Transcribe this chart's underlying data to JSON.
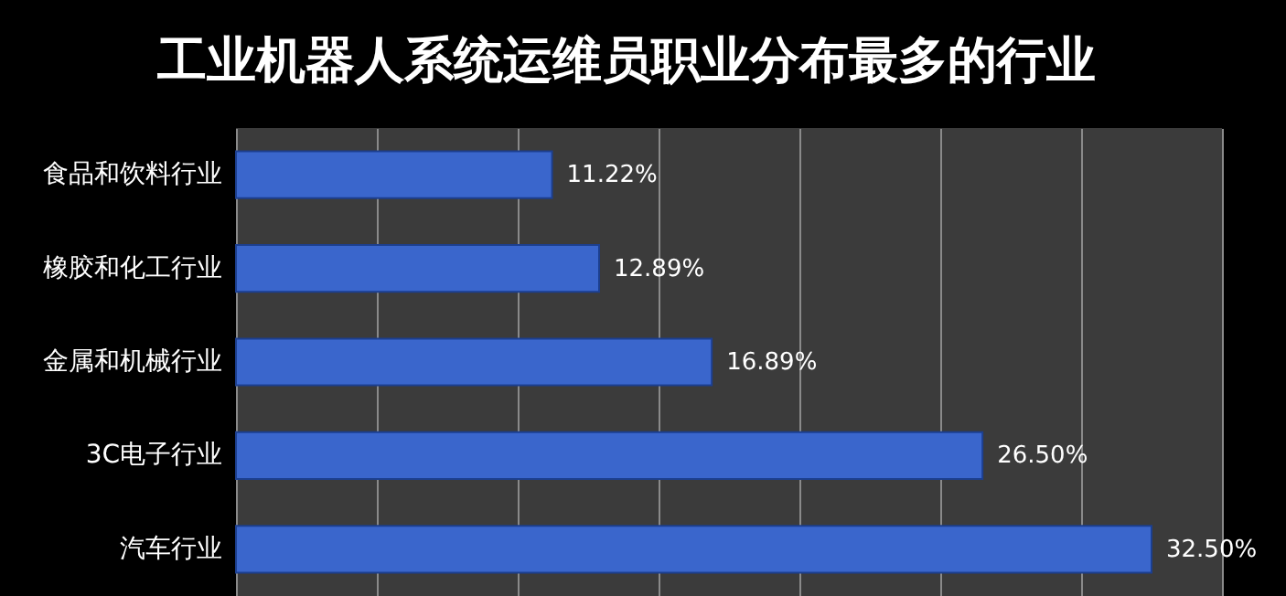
{
  "chart_data": {
    "type": "bar",
    "orientation": "horizontal",
    "title": "工业机器人系统运维员职业分布最多的行业",
    "categories": [
      "食品和饮料行业",
      "橡胶和化工行业",
      "金属和机械行业",
      "3C电子行业",
      "汽车行业"
    ],
    "values": [
      11.22,
      12.89,
      16.89,
      26.5,
      32.5
    ],
    "value_labels": [
      "11.22%",
      "12.89%",
      "16.89%",
      "26.50%",
      "32.50%"
    ],
    "color": "#3a66cc",
    "xlim": [
      0,
      35
    ],
    "xticks": [
      {
        "value": 0,
        "label": null
      },
      {
        "value": 5,
        "label": null
      },
      {
        "value": 10,
        "label": null
      },
      {
        "value": 15,
        "label": null
      },
      {
        "value": 20,
        "label": null
      },
      {
        "value": 25,
        "label": null
      },
      {
        "value": 30,
        "label": null
      },
      {
        "value": 35,
        "label": null
      }
    ],
    "grid": "x",
    "tick_labels": "y"
  }
}
